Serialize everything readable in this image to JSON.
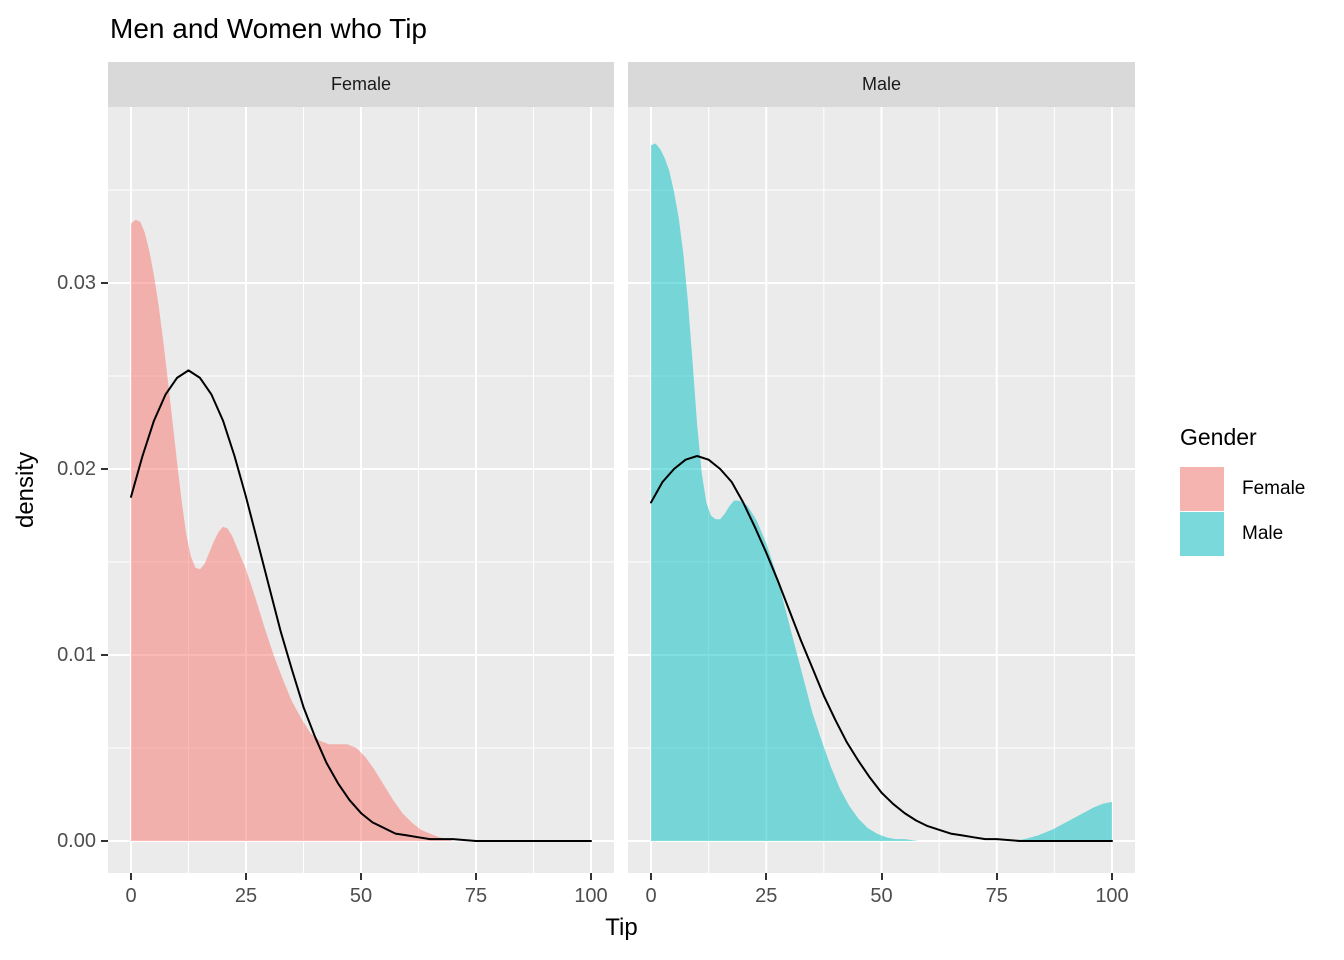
{
  "title": "Men and Women who Tip",
  "axis_titles": {
    "x": "Tip",
    "y": "density"
  },
  "legend": {
    "title": "Gender",
    "items": [
      {
        "label": "Female",
        "color": "#F8766D",
        "swatch_rgba": "rgba(248,118,109,0.5)"
      },
      {
        "label": "Male",
        "color": "#00BFC4",
        "swatch_rgba": "rgba(0,191,196,0.5)"
      }
    ]
  },
  "colors": {
    "panel_background": "#EBEBEB",
    "strip_background": "#D9D9D9",
    "gridline": "#FFFFFF",
    "axis_text": "#4D4D4D",
    "tick_mark": "#333333",
    "normal_curve": "#000000"
  },
  "chart_data": {
    "type": "area",
    "description": "Faceted density plot of tips by gender with overlaid black normal curves",
    "title": "Men and Women who Tip",
    "xlabel": "Tip",
    "ylabel": "density",
    "xlim": [
      -5,
      105
    ],
    "ylim": [
      -0.0017,
      0.0395
    ],
    "grid": "on",
    "legend_position": "right",
    "x_axis": {
      "major_ticks": [
        0,
        25,
        50,
        75,
        100
      ],
      "tick_labels": [
        "0",
        "25",
        "50",
        "75",
        "100"
      ],
      "minor_ticks": [
        12.5,
        37.5,
        62.5,
        87.5
      ]
    },
    "y_axis": {
      "major_ticks": [
        0,
        0.01,
        0.02,
        0.03
      ],
      "tick_labels": [
        "0.00",
        "0.01",
        "0.02",
        "0.03"
      ],
      "minor_ticks": [
        0.005,
        0.015,
        0.025,
        0.035
      ]
    },
    "facets": [
      {
        "name": "Female",
        "fill_rgba": "rgba(248,118,109,0.5)",
        "density": [
          [
            0,
            0.0332
          ],
          [
            1,
            0.0334
          ],
          [
            2,
            0.0333
          ],
          [
            3,
            0.0327
          ],
          [
            4,
            0.0317
          ],
          [
            5,
            0.0304
          ],
          [
            6,
            0.0288
          ],
          [
            7,
            0.0269
          ],
          [
            8,
            0.0248
          ],
          [
            9,
            0.0226
          ],
          [
            10,
            0.0204
          ],
          [
            11,
            0.0183
          ],
          [
            12,
            0.0165
          ],
          [
            13,
            0.0153
          ],
          [
            14,
            0.0147
          ],
          [
            15,
            0.0146
          ],
          [
            16,
            0.0149
          ],
          [
            17,
            0.0155
          ],
          [
            18,
            0.0161
          ],
          [
            19,
            0.0166
          ],
          [
            20,
            0.0169
          ],
          [
            21,
            0.0168
          ],
          [
            22,
            0.0164
          ],
          [
            23,
            0.0158
          ],
          [
            24,
            0.0152
          ],
          [
            25,
            0.0146
          ],
          [
            27,
            0.0131
          ],
          [
            29,
            0.0115
          ],
          [
            31,
            0.01
          ],
          [
            33,
            0.0087
          ],
          [
            35,
            0.0075
          ],
          [
            37,
            0.0066
          ],
          [
            39,
            0.0058
          ],
          [
            41,
            0.0054
          ],
          [
            43,
            0.0052
          ],
          [
            45,
            0.0052
          ],
          [
            47,
            0.0052
          ],
          [
            49,
            0.005
          ],
          [
            51,
            0.0045
          ],
          [
            53,
            0.0038
          ],
          [
            55,
            0.003
          ],
          [
            57,
            0.0022
          ],
          [
            59,
            0.0015
          ],
          [
            61,
            0.001
          ],
          [
            63,
            0.0006
          ],
          [
            65,
            0.0004
          ],
          [
            67,
            0.0002
          ],
          [
            69,
            0.0001
          ],
          [
            70,
            0
          ]
        ],
        "normal_curve": [
          [
            0,
            0.0185
          ],
          [
            2.5,
            0.0207
          ],
          [
            5,
            0.0226
          ],
          [
            7.5,
            0.024
          ],
          [
            10,
            0.0249
          ],
          [
            12.5,
            0.0253
          ],
          [
            15,
            0.0249
          ],
          [
            17.5,
            0.024
          ],
          [
            20,
            0.0226
          ],
          [
            22.5,
            0.0207
          ],
          [
            25,
            0.0185
          ],
          [
            27.5,
            0.0161
          ],
          [
            30,
            0.0137
          ],
          [
            32.5,
            0.0113
          ],
          [
            35,
            0.0092
          ],
          [
            37.5,
            0.0072
          ],
          [
            40,
            0.0056
          ],
          [
            42.5,
            0.0042
          ],
          [
            45,
            0.0031
          ],
          [
            47.5,
            0.0022
          ],
          [
            50,
            0.0015
          ],
          [
            52.5,
            0.001
          ],
          [
            55,
            0.0007
          ],
          [
            57.5,
            0.0004
          ],
          [
            60,
            0.0003
          ],
          [
            62.5,
            0.0002
          ],
          [
            65,
            0.0001
          ],
          [
            70,
            0.0001
          ],
          [
            75,
            0
          ],
          [
            100,
            0
          ]
        ]
      },
      {
        "name": "Male",
        "fill_rgba": "rgba(0,191,196,0.5)",
        "density": [
          [
            0,
            0.0374
          ],
          [
            1,
            0.0375
          ],
          [
            2,
            0.0372
          ],
          [
            3,
            0.0367
          ],
          [
            4,
            0.036
          ],
          [
            5,
            0.0349
          ],
          [
            6,
            0.0335
          ],
          [
            7,
            0.0316
          ],
          [
            8,
            0.029
          ],
          [
            9,
            0.0258
          ],
          [
            10,
            0.0224
          ],
          [
            11,
            0.0198
          ],
          [
            12,
            0.0182
          ],
          [
            13,
            0.0175
          ],
          [
            14,
            0.0173
          ],
          [
            15,
            0.0173
          ],
          [
            16,
            0.0176
          ],
          [
            17,
            0.018
          ],
          [
            18,
            0.0183
          ],
          [
            19,
            0.0183
          ],
          [
            20,
            0.0182
          ],
          [
            21,
            0.018
          ],
          [
            22,
            0.0176
          ],
          [
            23,
            0.0172
          ],
          [
            24,
            0.0166
          ],
          [
            25,
            0.016
          ],
          [
            27,
            0.0145
          ],
          [
            29,
            0.0126
          ],
          [
            31,
            0.0107
          ],
          [
            33,
            0.0088
          ],
          [
            35,
            0.0069
          ],
          [
            37,
            0.0054
          ],
          [
            39,
            0.004
          ],
          [
            41,
            0.0028
          ],
          [
            43,
            0.0019
          ],
          [
            45,
            0.0012
          ],
          [
            47,
            0.0007
          ],
          [
            49,
            0.0004
          ],
          [
            51,
            0.0002
          ],
          [
            53,
            0.0001
          ],
          [
            55,
            0.0001
          ],
          [
            58,
            0
          ],
          [
            78,
            0
          ],
          [
            81,
            0.0001
          ],
          [
            84,
            0.0003
          ],
          [
            87,
            0.0006
          ],
          [
            90,
            0.001
          ],
          [
            93,
            0.0014
          ],
          [
            96,
            0.0018
          ],
          [
            98,
            0.002
          ],
          [
            100,
            0.0021
          ]
        ],
        "normal_curve": [
          [
            0,
            0.0182
          ],
          [
            2.5,
            0.0193
          ],
          [
            5,
            0.02
          ],
          [
            7.5,
            0.0205
          ],
          [
            10,
            0.0207
          ],
          [
            12.5,
            0.0205
          ],
          [
            15,
            0.02
          ],
          [
            17.5,
            0.0193
          ],
          [
            20,
            0.0182
          ],
          [
            22.5,
            0.0169
          ],
          [
            25,
            0.0155
          ],
          [
            27.5,
            0.014
          ],
          [
            30,
            0.0124
          ],
          [
            32.5,
            0.0108
          ],
          [
            35,
            0.0093
          ],
          [
            37.5,
            0.0078
          ],
          [
            40,
            0.0065
          ],
          [
            42.5,
            0.0053
          ],
          [
            45,
            0.0043
          ],
          [
            47.5,
            0.0034
          ],
          [
            50,
            0.0026
          ],
          [
            52.5,
            0.002
          ],
          [
            55,
            0.0015
          ],
          [
            57.5,
            0.0011
          ],
          [
            60,
            0.0008
          ],
          [
            62.5,
            0.0006
          ],
          [
            65,
            0.0004
          ],
          [
            67.5,
            0.0003
          ],
          [
            70,
            0.0002
          ],
          [
            72.5,
            0.0001
          ],
          [
            75,
            0.0001
          ],
          [
            80,
            0
          ],
          [
            100,
            0
          ]
        ]
      }
    ]
  }
}
